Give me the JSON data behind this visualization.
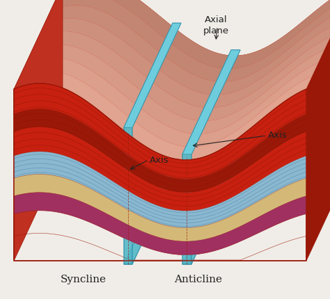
{
  "bg_color": "#f0ede8",
  "red_top": "#d43020",
  "red_mid": "#c82010",
  "red_dark": "#9a1808",
  "red_light": "#e04030",
  "red_face": "#b82818",
  "red_shaded": "#c03020",
  "blue_layer": "#8ab8d0",
  "blue_layer_dark": "#6090b0",
  "tan_layer": "#d4b878",
  "tan_layer_dark": "#c0a060",
  "purple_layer": "#a03060",
  "purple_layer_dark": "#782040",
  "teal_plane": "#50b8c8",
  "teal_plane_dark": "#3090a8",
  "teal_plane_light": "#70d0e0",
  "text_color": "#222222",
  "stripe_color": "#8b1500",
  "title_syncline": "Syncline",
  "title_anticline": "Anticline",
  "label_axial_plane": "Axial\nplane",
  "label_axis1": "Axis",
  "label_axis2": "Axis",
  "figsize": [
    4.74,
    4.3
  ],
  "dpi": 100
}
